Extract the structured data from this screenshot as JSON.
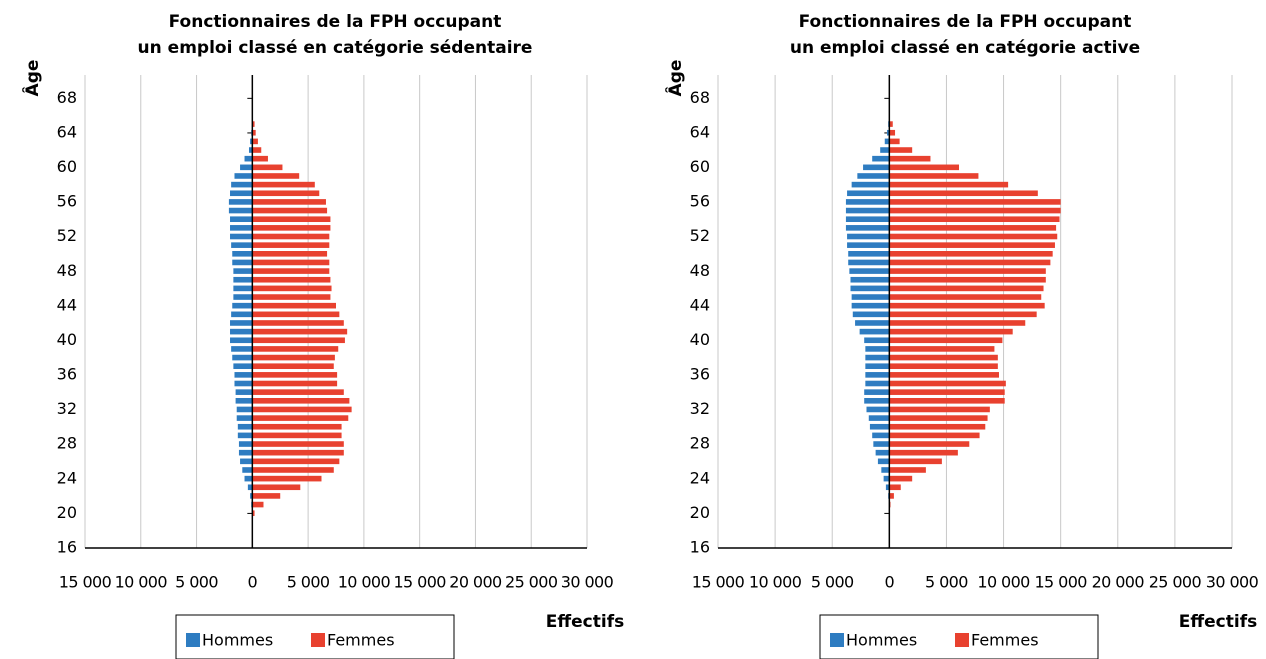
{
  "chart_data": [
    {
      "type": "bar",
      "orientation": "horizontal",
      "title": [
        "Fonctionnaires de la FPH occupant",
        "un emploi classé en catégorie sédentaire"
      ],
      "y_label": "Âge",
      "x_label": "Effectifs",
      "ages": [
        65,
        64,
        63,
        62,
        61,
        60,
        59,
        58,
        57,
        56,
        55,
        54,
        53,
        52,
        51,
        50,
        49,
        48,
        47,
        46,
        45,
        44,
        43,
        42,
        41,
        40,
        39,
        38,
        37,
        36,
        35,
        34,
        33,
        32,
        31,
        30,
        29,
        28,
        27,
        26,
        25,
        24,
        23,
        22,
        21,
        20
      ],
      "series": [
        {
          "name": "Hommes",
          "color": "#2e7cc1",
          "values": [
            0,
            -100,
            -200,
            -300,
            -700,
            -1100,
            -1600,
            -1900,
            -2000,
            -2100,
            -2100,
            -2000,
            -2000,
            -2000,
            -1900,
            -1800,
            -1800,
            -1700,
            -1700,
            -1700,
            -1700,
            -1800,
            -1900,
            -2000,
            -2000,
            -2000,
            -1900,
            -1800,
            -1700,
            -1600,
            -1600,
            -1500,
            -1500,
            -1400,
            -1400,
            -1300,
            -1300,
            -1200,
            -1200,
            -1100,
            -900,
            -700,
            -400,
            -200,
            -100,
            0
          ]
        },
        {
          "name": "Femmes",
          "color": "#e8412f",
          "values": [
            200,
            300,
            500,
            800,
            1400,
            2700,
            4200,
            5600,
            6000,
            6600,
            6700,
            7000,
            7000,
            6900,
            6900,
            6700,
            6900,
            6900,
            7000,
            7100,
            7000,
            7500,
            7800,
            8200,
            8500,
            8300,
            7700,
            7400,
            7300,
            7600,
            7600,
            8200,
            8700,
            8900,
            8600,
            8000,
            8000,
            8200,
            8200,
            7800,
            7300,
            6200,
            4300,
            2500,
            1000,
            200
          ]
        }
      ],
      "xlim": [
        -15000,
        30000
      ],
      "xticks": [
        {
          "value": -15000,
          "label": "15 000"
        },
        {
          "value": -10000,
          "label": "10 000"
        },
        {
          "value": -5000,
          "label": "5 000"
        },
        0,
        {
          "value": 5000,
          "label": "5 000"
        },
        {
          "value": 10000,
          "label": "10 000"
        },
        {
          "value": 15000,
          "label": "15 000"
        },
        {
          "value": 20000,
          "label": "20 000"
        },
        {
          "value": 25000,
          "label": "25 000"
        },
        {
          "value": 30000,
          "label": "30 000"
        }
      ],
      "ylim": [
        16,
        70.7
      ],
      "yticks": [
        16,
        20,
        24,
        28,
        32,
        36,
        40,
        44,
        48,
        52,
        56,
        60,
        64,
        68
      ],
      "grid": true
    },
    {
      "type": "bar",
      "orientation": "horizontal",
      "title": [
        "Fonctionnaires de la FPH occupant",
        "un emploi classé en catégorie active"
      ],
      "y_label": "Âge",
      "x_label": "Effectifs",
      "ages": [
        65,
        64,
        63,
        62,
        61,
        60,
        59,
        58,
        57,
        56,
        55,
        54,
        53,
        52,
        51,
        50,
        49,
        48,
        47,
        46,
        45,
        44,
        43,
        42,
        41,
        40,
        39,
        38,
        37,
        36,
        35,
        34,
        33,
        32,
        31,
        30,
        29,
        28,
        27,
        26,
        25,
        24,
        23,
        22,
        21,
        20
      ],
      "series": [
        {
          "name": "Hommes",
          "color": "#2e7cc1",
          "values": [
            -100,
            -200,
            -400,
            -800,
            -1500,
            -2300,
            -2800,
            -3300,
            -3700,
            -3800,
            -3800,
            -3800,
            -3800,
            -3700,
            -3700,
            -3600,
            -3600,
            -3500,
            -3400,
            -3400,
            -3300,
            -3300,
            -3200,
            -3000,
            -2600,
            -2200,
            -2100,
            -2100,
            -2100,
            -2100,
            -2100,
            -2200,
            -2200,
            -2000,
            -1800,
            -1700,
            -1500,
            -1400,
            -1200,
            -1000,
            -700,
            -500,
            -300,
            -100,
            0,
            0
          ]
        },
        {
          "name": "Femmes",
          "color": "#e8412f",
          "values": [
            300,
            500,
            900,
            2000,
            3600,
            6100,
            7800,
            10400,
            13000,
            15000,
            15000,
            14900,
            14600,
            14700,
            14500,
            14300,
            14100,
            13700,
            13700,
            13500,
            13300,
            13600,
            12900,
            11900,
            10800,
            9900,
            9200,
            9500,
            9500,
            9600,
            10200,
            10100,
            10100,
            8800,
            8600,
            8400,
            7900,
            7000,
            6000,
            4600,
            3200,
            2000,
            1000,
            400,
            100,
            0
          ]
        }
      ],
      "xlim": [
        -15000,
        30000
      ],
      "xticks": [
        {
          "value": -15000,
          "label": "15 000"
        },
        {
          "value": -10000,
          "label": "10 000"
        },
        {
          "value": -5000,
          "label": "5 000"
        },
        0,
        {
          "value": 5000,
          "label": "5 000"
        },
        {
          "value": 10000,
          "label": "10 000"
        },
        {
          "value": 15000,
          "label": "15 000"
        },
        {
          "value": 20000,
          "label": "20 000"
        },
        {
          "value": 25000,
          "label": "25 000"
        },
        {
          "value": 30000,
          "label": "30 000"
        }
      ],
      "ylim": [
        16,
        70.7
      ],
      "yticks": [
        16,
        20,
        24,
        28,
        32,
        36,
        40,
        44,
        48,
        52,
        56,
        60,
        64,
        68
      ],
      "grid": true
    }
  ]
}
